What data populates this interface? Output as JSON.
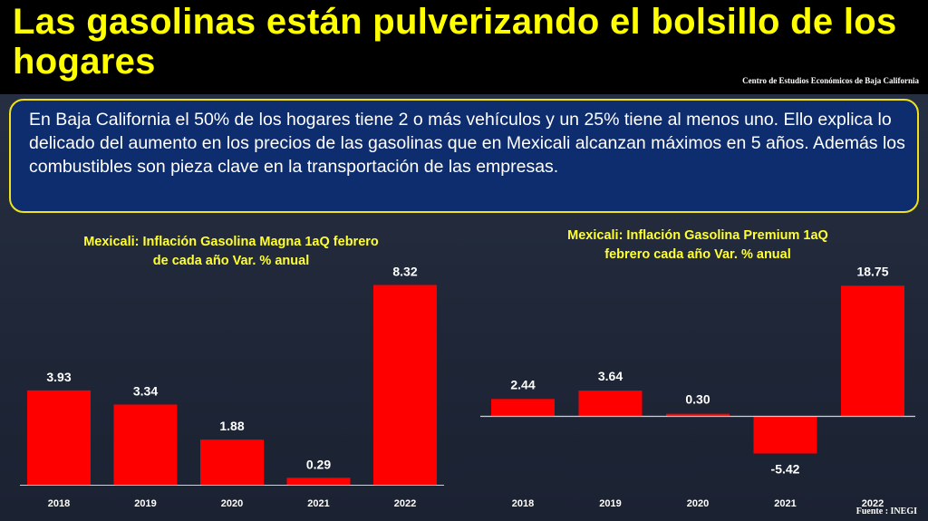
{
  "slide": {
    "title": "Las gasolinas están pulverizando el bolsillo de los hogares",
    "source_top": "Centro de Estudios Económicos de Baja California",
    "body_text": "En Baja California el 50% de los hogares tiene 2 o más vehículos y un 25% tiene al menos uno. Ello explica lo delicado del aumento en los precios de las gasolinas que en Mexicali alcanzan máximos en 5 años. Además los combustibles son pieza clave en la transportación de las empresas.",
    "source_bottom": "Fuente : INEGI"
  },
  "colors": {
    "bar": "#ff0000",
    "title_yellow": "#ffff00",
    "box_bg": "#0e2d6e",
    "box_border": "#f2e21a"
  },
  "chart_data": [
    {
      "type": "bar",
      "title_line1": "Mexicali: Inflación Gasolina Magna 1aQ febrero",
      "title_line2": "de cada año Var. % anual",
      "categories": [
        "2018",
        "2019",
        "2020",
        "2021",
        "2022"
      ],
      "values": [
        3.93,
        3.34,
        1.88,
        0.29,
        8.32
      ],
      "value_labels": [
        "3.93",
        "3.34",
        "1.88",
        "0.29",
        "8.32"
      ]
    },
    {
      "type": "bar",
      "title_line1": "Mexicali: Inflación Gasolina Premium 1aQ",
      "title_line2": "febrero cada año Var. % anual",
      "categories": [
        "2018",
        "2019",
        "2020",
        "2021",
        "2022"
      ],
      "values": [
        2.44,
        3.64,
        0.3,
        -5.42,
        18.75
      ],
      "value_labels": [
        "2.44",
        "3.64",
        "0.30",
        "-5.42",
        "18.75"
      ]
    }
  ]
}
